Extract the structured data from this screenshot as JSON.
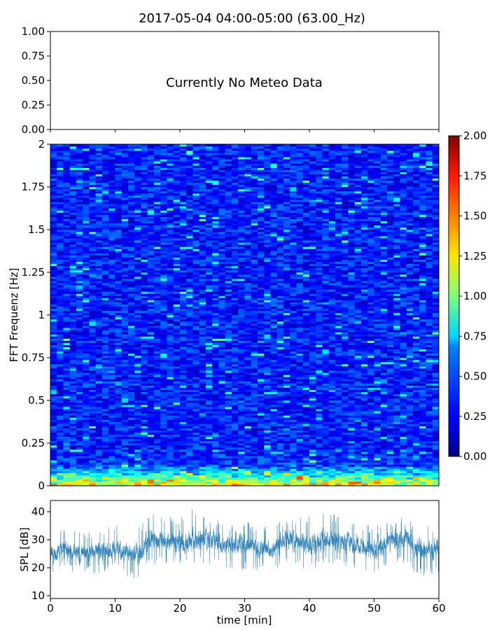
{
  "title": "2017-05-04 04:00-05:00 (63.00_Hz)",
  "chart_data": [
    {
      "type": "line",
      "panel": "meteo",
      "annotation": "Currently No Meteo Data",
      "xlim": [
        0,
        60
      ],
      "ylim": [
        0,
        1
      ],
      "yticks": [
        "0.00",
        "0.25",
        "0.50",
        "0.75",
        "1.00"
      ],
      "xtick_labels_visible": false
    },
    {
      "type": "heatmap",
      "panel": "spectrogram",
      "ylabel": "FFT Frequenz [Hz]",
      "xlim": [
        0,
        60
      ],
      "ylim": [
        0,
        2
      ],
      "yticks": [
        "0",
        "0.25",
        "0.5",
        "0.75",
        "1",
        "1.25",
        "1.5",
        "1.75",
        "2"
      ],
      "colormap": "jet",
      "colorbar": {
        "range": [
          0,
          2
        ],
        "ticks": [
          "0.00",
          "0.25",
          "0.50",
          "0.75",
          "1.00",
          "1.25",
          "1.50",
          "1.75",
          "2.00"
        ]
      },
      "background_value": 0.3,
      "low_frequency_value": 1.2,
      "time_bins": 60,
      "frequency_bins": 160
    },
    {
      "type": "line",
      "panel": "spl",
      "ylabel": "SPL [dB]",
      "xlabel": "time [min]",
      "xlim": [
        0,
        60
      ],
      "ylim": [
        9,
        44
      ],
      "xticks": [
        "0",
        "10",
        "20",
        "30",
        "40",
        "50",
        "60"
      ],
      "yticks": [
        "10",
        "20",
        "30",
        "40"
      ],
      "color": "#1f77b4",
      "series": [
        {
          "x": [
            0,
            2,
            4,
            6,
            8,
            10,
            12,
            14,
            15,
            17,
            20,
            22,
            24,
            26,
            28,
            30,
            32,
            34,
            36,
            38,
            40,
            42,
            44,
            46,
            48,
            50,
            52,
            54,
            55,
            56,
            58,
            60
          ],
          "center": [
            25,
            27,
            25,
            25,
            26,
            27,
            24,
            25,
            30,
            30,
            29,
            30,
            30,
            29,
            28,
            28,
            27,
            26,
            30,
            29,
            28,
            30,
            30,
            29,
            28,
            26,
            29,
            30,
            31,
            28,
            26,
            27
          ],
          "low": [
            18,
            20,
            18,
            18,
            18,
            19,
            16,
            16,
            21,
            21,
            21,
            21,
            21,
            20,
            20,
            19,
            19,
            18,
            21,
            20,
            19,
            21,
            21,
            20,
            19,
            17,
            20,
            21,
            22,
            18,
            17,
            18
          ],
          "high": [
            36,
            35,
            33,
            33,
            34,
            36,
            33,
            35,
            40,
            38,
            38,
            42,
            38,
            37,
            36,
            37,
            35,
            35,
            38,
            38,
            39,
            40,
            39,
            37,
            36,
            35,
            37,
            38,
            38,
            36,
            34,
            37
          ]
        }
      ]
    }
  ]
}
